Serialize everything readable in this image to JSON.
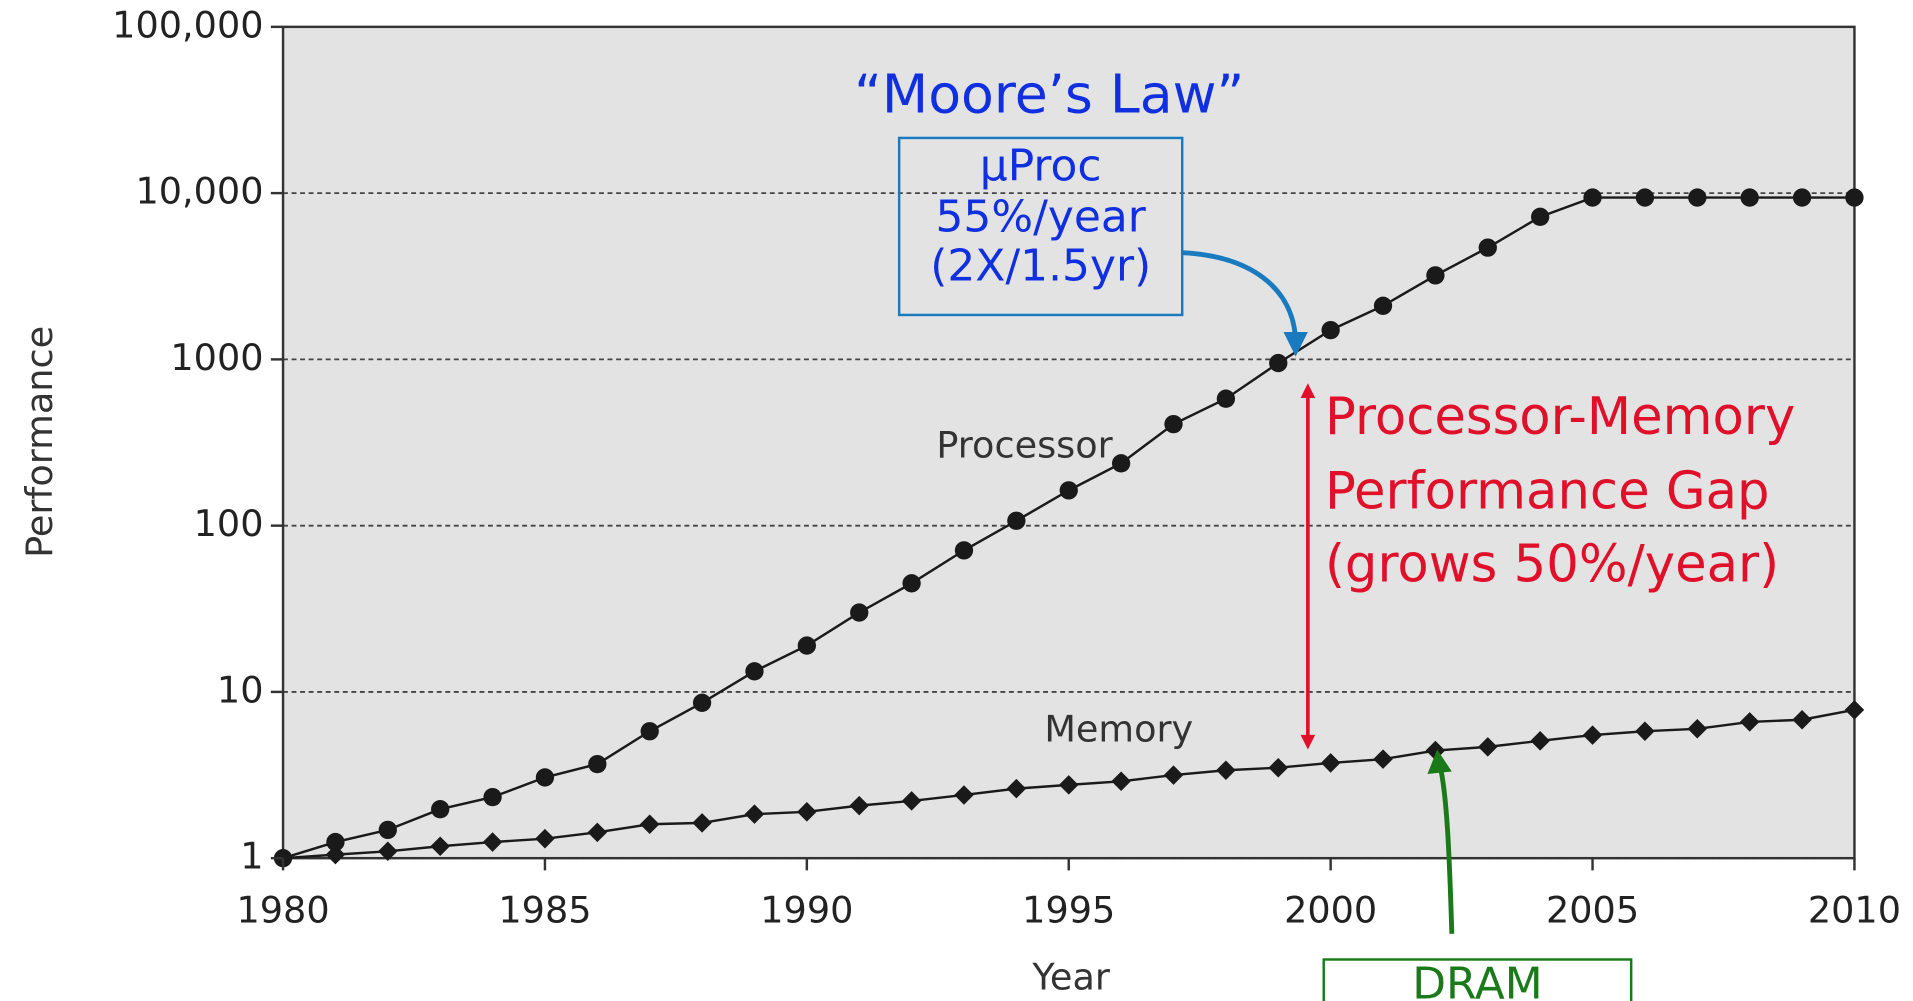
{
  "chart_data": {
    "type": "line",
    "xlabel": "Year",
    "ylabel": "Performance",
    "x": [
      1980,
      1981,
      1982,
      1983,
      1984,
      1985,
      1986,
      1987,
      1988,
      1989,
      1990,
      1991,
      1992,
      1993,
      1994,
      1995,
      1996,
      1997,
      1998,
      1999,
      2000,
      2001,
      2002,
      2003,
      2004,
      2005,
      2006,
      2007,
      2008,
      2009,
      2010
    ],
    "xlim": [
      1980,
      2010
    ],
    "xticks": [
      1980,
      1985,
      1990,
      1995,
      2000,
      2005,
      2010
    ],
    "ylim": [
      1,
      100000
    ],
    "log_y": true,
    "yticks": [
      1,
      10,
      100,
      {
        "value": 1000,
        "label": "1000"
      },
      {
        "value": 10000,
        "label": "10,000"
      },
      {
        "value": 100000,
        "label": "100,000"
      }
    ],
    "grid": true,
    "series": [
      {
        "name": "Processor",
        "color": "#1a1a1a",
        "marker": "circle",
        "values": [
          1,
          1.25,
          1.48,
          1.97,
          2.33,
          3.06,
          3.68,
          5.8,
          8.6,
          13.3,
          19,
          30,
          45,
          71,
          107,
          163,
          237,
          408,
          580,
          950,
          1500,
          2100,
          3200,
          4700,
          7200,
          9400,
          9400,
          9400,
          9400,
          9400,
          9400
        ]
      },
      {
        "name": "Memory",
        "color": "#1a1a1a",
        "marker": "diamond",
        "values": [
          1,
          1.05,
          1.1,
          1.18,
          1.25,
          1.31,
          1.43,
          1.6,
          1.63,
          1.84,
          1.9,
          2.07,
          2.21,
          2.4,
          2.62,
          2.76,
          2.9,
          3.16,
          3.38,
          3.5,
          3.74,
          3.94,
          4.44,
          4.67,
          5.08,
          5.5,
          5.8,
          6.0,
          6.6,
          6.8,
          7.8
        ]
      }
    ],
    "annotations": [
      "“Moore’s Law”",
      "μProc",
      "55%/year",
      "(2X/1.5yr)",
      "Processor-Memory",
      "Performance Gap",
      "(grows 50%/year)",
      "DRAM"
    ]
  }
}
